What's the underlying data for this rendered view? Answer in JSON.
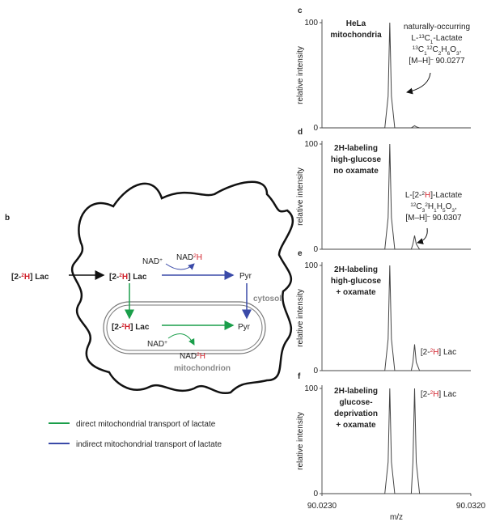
{
  "diagram": {
    "label": "b",
    "source": [
      {
        "text": "[2-"
      },
      {
        "text": "2",
        "sup": true,
        "color": "#d0202a"
      },
      {
        "text": "H",
        "color": "#d0202a"
      },
      {
        "text": "] Lac"
      }
    ],
    "cytosol_lac": [
      {
        "text": "[2-"
      },
      {
        "text": "2",
        "sup": true,
        "color": "#d0202a"
      },
      {
        "text": "H",
        "color": "#d0202a"
      },
      {
        "text": "] Lac"
      }
    ],
    "nad_cyto": [
      {
        "text": "NAD"
      },
      {
        "text": "+",
        "sup": true
      }
    ],
    "nad2h_cyto": [
      {
        "text": "NAD"
      },
      {
        "text": "2",
        "sup": true,
        "color": "#d0202a"
      },
      {
        "text": "H",
        "color": "#d0202a"
      }
    ],
    "pyr_cyto": "Pyr",
    "cytosol": "cytosol",
    "mito_lac": [
      {
        "text": "[2-"
      },
      {
        "text": "2",
        "sup": true,
        "color": "#d0202a"
      },
      {
        "text": "H",
        "color": "#d0202a"
      },
      {
        "text": "] Lac"
      }
    ],
    "pyr_mito": "Pyr",
    "nad_mito": [
      {
        "text": "NAD"
      },
      {
        "text": "+",
        "sup": true
      }
    ],
    "nad2h_mito": [
      {
        "text": "NAD"
      },
      {
        "text": "2",
        "sup": true,
        "color": "#d0202a"
      },
      {
        "text": "H",
        "color": "#d0202a"
      }
    ],
    "mitochondrion": "mitochondrion",
    "legend": [
      {
        "color": "#1a9e4a",
        "text": "direct mitochondrial transport of lactate"
      },
      {
        "color": "#3a4aa8",
        "text": "indirect mitochondrial transport of lactate"
      }
    ]
  },
  "chart_data": [
    {
      "type": "line",
      "label": "c",
      "title": [
        "HeLa",
        "mitochondria"
      ],
      "ylabel": "relative intensity",
      "xlim": [
        90.023,
        90.032
      ],
      "ylim": [
        0,
        100
      ],
      "yticks": [
        0,
        100
      ],
      "x": [
        90.023,
        90.0268,
        90.027,
        90.0271,
        90.0272,
        90.0274,
        90.0284,
        90.0285,
        90.0286,
        90.0287,
        90.0289,
        90.032
      ],
      "series": [
        {
          "color": "#444444",
          "values": [
            0,
            0,
            30,
            100,
            30,
            0,
            0,
            1,
            2,
            1,
            0,
            0
          ]
        }
      ],
      "annotation": [
        [
          {
            "text": "naturally-occurring"
          }
        ],
        [
          {
            "text": "L-"
          },
          {
            "text": "13",
            "sup": true
          },
          {
            "text": "C"
          },
          {
            "text": "1",
            "sub": true
          },
          {
            "text": "-Lactate"
          }
        ],
        [
          {
            "text": "13",
            "sup": true
          },
          {
            "text": "C"
          },
          {
            "text": "1",
            "sub": true
          },
          {
            "text": "12",
            "sup": true
          },
          {
            "text": "C"
          },
          {
            "text": "2",
            "sub": true
          },
          {
            "text": "H"
          },
          {
            "text": "6",
            "sub": true
          },
          {
            "text": "O"
          },
          {
            "text": "3",
            "sub": true
          },
          {
            "text": ","
          }
        ],
        [
          {
            "text": "[M–H]"
          },
          {
            "text": "–",
            "sup": true
          },
          {
            "text": " 90.0277"
          }
        ]
      ]
    },
    {
      "type": "line",
      "label": "d",
      "title": [
        "2H-labeling",
        "high-glucose",
        "no oxamate"
      ],
      "ylabel": "relative intensity",
      "xlim": [
        90.023,
        90.032
      ],
      "ylim": [
        0,
        100
      ],
      "yticks": [
        0,
        100
      ],
      "x": [
        90.023,
        90.0268,
        90.027,
        90.0271,
        90.0272,
        90.0274,
        90.0284,
        90.0285,
        90.0286,
        90.0287,
        90.0289,
        90.032
      ],
      "series": [
        {
          "color": "#444444",
          "values": [
            0,
            0,
            30,
            100,
            30,
            0,
            0,
            5,
            13,
            5,
            0,
            0
          ]
        }
      ],
      "annotation": [
        [
          {
            "text": "L-[2-"
          },
          {
            "text": "2",
            "sup": true
          },
          {
            "text": "H",
            "color": "#d0202a"
          },
          {
            "text": "]-Lactate"
          }
        ],
        [
          {
            "text": "12",
            "sup": true
          },
          {
            "text": "C"
          },
          {
            "text": "3",
            "sub": true
          },
          {
            "text": "2",
            "sup": true
          },
          {
            "text": "H"
          },
          {
            "text": "1",
            "sub": true
          },
          {
            "text": "H"
          },
          {
            "text": "5",
            "sub": true
          },
          {
            "text": "O"
          },
          {
            "text": "3",
            "sub": true
          },
          {
            "text": ","
          }
        ],
        [
          {
            "text": "[M–H]"
          },
          {
            "text": "–",
            "sup": true
          },
          {
            "text": " 90.0307"
          }
        ]
      ]
    },
    {
      "type": "line",
      "label": "e",
      "title": [
        "2H-labeling",
        "high-glucose",
        "+ oxamate"
      ],
      "ylabel": "relative intensity",
      "xlim": [
        90.023,
        90.032
      ],
      "ylim": [
        0,
        100
      ],
      "yticks": [
        0,
        100
      ],
      "x": [
        90.023,
        90.0268,
        90.027,
        90.0271,
        90.0272,
        90.0274,
        90.0284,
        90.0285,
        90.0286,
        90.0287,
        90.0289,
        90.032
      ],
      "series": [
        {
          "color": "#444444",
          "values": [
            0,
            0,
            30,
            100,
            30,
            0,
            0,
            8,
            25,
            8,
            0,
            0
          ]
        }
      ],
      "annotation": [
        [
          {
            "text": "[2-"
          },
          {
            "text": "2",
            "sup": true,
            "color": "#d0202a"
          },
          {
            "text": "H",
            "color": "#d0202a"
          },
          {
            "text": "] Lac"
          }
        ]
      ]
    },
    {
      "type": "line",
      "label": "f",
      "title": [
        "2H-labeling",
        "glucose-",
        "deprivation",
        "+ oxamate"
      ],
      "ylabel": "relative intensity",
      "xlabel": "m/z",
      "xlim": [
        90.023,
        90.032
      ],
      "ylim": [
        0,
        100
      ],
      "yticks": [
        0,
        100
      ],
      "xticks": [
        {
          "value": 90.023,
          "label": "90.0230"
        },
        {
          "value": 90.032,
          "label": "90.0320"
        }
      ],
      "x": [
        90.023,
        90.0268,
        90.027,
        90.0271,
        90.0272,
        90.0274,
        90.0284,
        90.0285,
        90.0286,
        90.0287,
        90.0289,
        90.032
      ],
      "series": [
        {
          "color": "#444444",
          "values": [
            0,
            0,
            30,
            100,
            30,
            0,
            0,
            30,
            100,
            30,
            0,
            0
          ]
        }
      ],
      "annotation": [
        [
          {
            "text": "[2-"
          },
          {
            "text": "2",
            "sup": true,
            "color": "#d0202a"
          },
          {
            "text": "H",
            "color": "#d0202a"
          },
          {
            "text": "] Lac"
          }
        ]
      ]
    }
  ]
}
